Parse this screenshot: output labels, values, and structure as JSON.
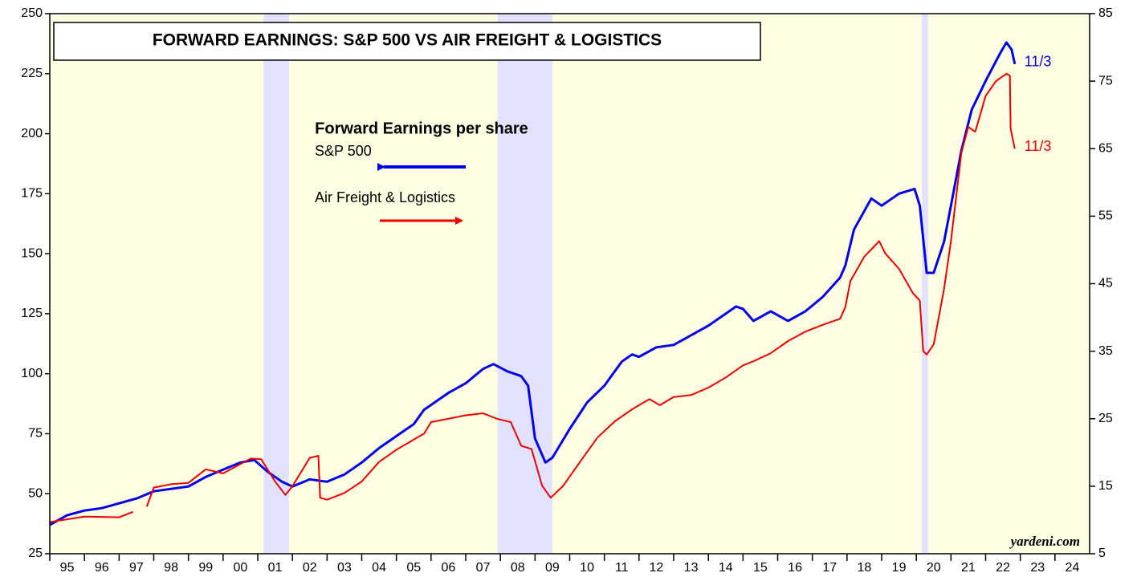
{
  "chart_data": {
    "type": "line",
    "title": "FORWARD EARNINGS: S&P 500 VS AIR FREIGHT & LOGISTICS",
    "legend_title": "Forward Earnings per share",
    "source": "yardeni.com",
    "xlim": [
      1995,
      2025
    ],
    "xticks": [
      {
        "value": 1995,
        "label": "95"
      },
      {
        "value": 1996,
        "label": "96"
      },
      {
        "value": 1997,
        "label": "97"
      },
      {
        "value": 1998,
        "label": "98"
      },
      {
        "value": 1999,
        "label": "99"
      },
      {
        "value": 2000,
        "label": "00"
      },
      {
        "value": 2001,
        "label": "01"
      },
      {
        "value": 2002,
        "label": "02"
      },
      {
        "value": 2003,
        "label": "03"
      },
      {
        "value": 2004,
        "label": "04"
      },
      {
        "value": 2005,
        "label": "05"
      },
      {
        "value": 2006,
        "label": "06"
      },
      {
        "value": 2007,
        "label": "07"
      },
      {
        "value": 2008,
        "label": "08"
      },
      {
        "value": 2009,
        "label": "09"
      },
      {
        "value": 2010,
        "label": "10"
      },
      {
        "value": 2011,
        "label": "11"
      },
      {
        "value": 2012,
        "label": "12"
      },
      {
        "value": 2013,
        "label": "13"
      },
      {
        "value": 2014,
        "label": "14"
      },
      {
        "value": 2015,
        "label": "15"
      },
      {
        "value": 2016,
        "label": "16"
      },
      {
        "value": 2017,
        "label": "17"
      },
      {
        "value": 2018,
        "label": "18"
      },
      {
        "value": 2019,
        "label": "19"
      },
      {
        "value": 2020,
        "label": "20"
      },
      {
        "value": 2021,
        "label": "21"
      },
      {
        "value": 2022,
        "label": "22"
      },
      {
        "value": 2023,
        "label": "23"
      },
      {
        "value": 2024,
        "label": "24"
      }
    ],
    "ylim": [
      25,
      250
    ],
    "yticks": [
      25,
      50,
      75,
      100,
      125,
      150,
      175,
      200,
      225,
      250
    ],
    "y2lim": [
      5,
      85
    ],
    "y2ticks": [
      5,
      15,
      25,
      35,
      45,
      55,
      65,
      75,
      85
    ],
    "recessions": [
      [
        2001.17,
        2001.9
      ],
      [
        2007.92,
        2009.5
      ],
      [
        2020.16,
        2020.34
      ]
    ],
    "series": [
      {
        "name": "S&P 500",
        "color": "#0000ee",
        "axis": "y",
        "end_label": "11/3",
        "x": [
          1995.0,
          1995.5,
          1996.0,
          1996.5,
          1997.0,
          1997.5,
          1998.0,
          1998.5,
          1999.0,
          1999.5,
          2000.0,
          2000.5,
          2000.9,
          2001.3,
          2001.7,
          2002.0,
          2002.5,
          2003.0,
          2003.5,
          2004.0,
          2004.5,
          2005.0,
          2005.5,
          2005.8,
          2006.0,
          2006.5,
          2007.0,
          2007.5,
          2007.8,
          2008.2,
          2008.6,
          2008.8,
          2009.0,
          2009.3,
          2009.5,
          2010.0,
          2010.5,
          2011.0,
          2011.5,
          2011.8,
          2012.0,
          2012.5,
          2013.0,
          2013.5,
          2014.0,
          2014.5,
          2014.8,
          2015.0,
          2015.3,
          2015.8,
          2016.3,
          2016.8,
          2017.3,
          2017.8,
          2017.95,
          2018.2,
          2018.7,
          2019.0,
          2019.5,
          2019.95,
          2020.1,
          2020.3,
          2020.5,
          2020.8,
          2021.0,
          2021.3,
          2021.6,
          2022.0,
          2022.4,
          2022.6,
          2022.75,
          2022.84
        ],
        "values": [
          37,
          41,
          43,
          44,
          46,
          48,
          51,
          52,
          53,
          57,
          60,
          63,
          64,
          59,
          55,
          53,
          56,
          55,
          58,
          63,
          69,
          74,
          79,
          85,
          87,
          92,
          96,
          102,
          104,
          101,
          99,
          95,
          73,
          63,
          65,
          77,
          88,
          95,
          105,
          108,
          107,
          111,
          112,
          116,
          120,
          125,
          128,
          127,
          122,
          126,
          122,
          126,
          132,
          140,
          145,
          160,
          173,
          170,
          175,
          177,
          170,
          142,
          142,
          155,
          170,
          193,
          210,
          222,
          233,
          238,
          235,
          229
        ]
      },
      {
        "name": "Air Freight & Logistics",
        "color": "#ee0000",
        "axis": "y2",
        "end_label": "11/3",
        "x": [
          1995.0,
          1996.0,
          1997.0,
          1997.4,
          1997.6,
          1997.8,
          1998.0,
          1998.5,
          1999.0,
          1999.5,
          2000.0,
          2000.8,
          2001.1,
          2001.5,
          2001.8,
          2002.0,
          2002.5,
          2002.75,
          2002.8,
          2003.0,
          2003.5,
          2004.0,
          2004.5,
          2005.0,
          2005.5,
          2005.8,
          2006.0,
          2006.5,
          2007.0,
          2007.5,
          2007.9,
          2008.3,
          2008.6,
          2008.9,
          2009.2,
          2009.45,
          2009.8,
          2010.3,
          2010.8,
          2011.3,
          2011.8,
          2012.3,
          2012.6,
          2013.0,
          2013.5,
          2014.0,
          2014.5,
          2015.0,
          2015.3,
          2015.8,
          2016.3,
          2016.8,
          2017.3,
          2017.8,
          2017.95,
          2018.1,
          2018.5,
          2018.93,
          2019.1,
          2019.5,
          2019.9,
          2020.1,
          2020.2,
          2020.3,
          2020.5,
          2020.8,
          2021.0,
          2021.3,
          2021.5,
          2021.7,
          2022.0,
          2022.3,
          2022.6,
          2022.7,
          2022.72,
          2022.8,
          2022.84
        ],
        "values": [
          9.7,
          10.5,
          10.4,
          11.2,
          null,
          12,
          14.8,
          15.3,
          15.5,
          17.5,
          16.9,
          19.1,
          19,
          15.7,
          13.7,
          15,
          19.2,
          19.5,
          13.3,
          13,
          14,
          15.7,
          18.6,
          20.4,
          21.9,
          22.8,
          24.5,
          25,
          25.5,
          25.8,
          25,
          24.5,
          21,
          20.5,
          15.1,
          13.3,
          15,
          18.6,
          22.2,
          24.6,
          26.4,
          27.9,
          27,
          28.2,
          28.5,
          29.6,
          31.1,
          32.9,
          33.5,
          34.7,
          36.5,
          37.9,
          38.9,
          39.8,
          41.5,
          45.4,
          49,
          51.3,
          49.5,
          47.2,
          43.6,
          42.5,
          35,
          34.5,
          36,
          44.2,
          51.3,
          64.4,
          68.2,
          67.5,
          72.8,
          75,
          76.1,
          75.8,
          68,
          66,
          65
        ]
      }
    ]
  }
}
